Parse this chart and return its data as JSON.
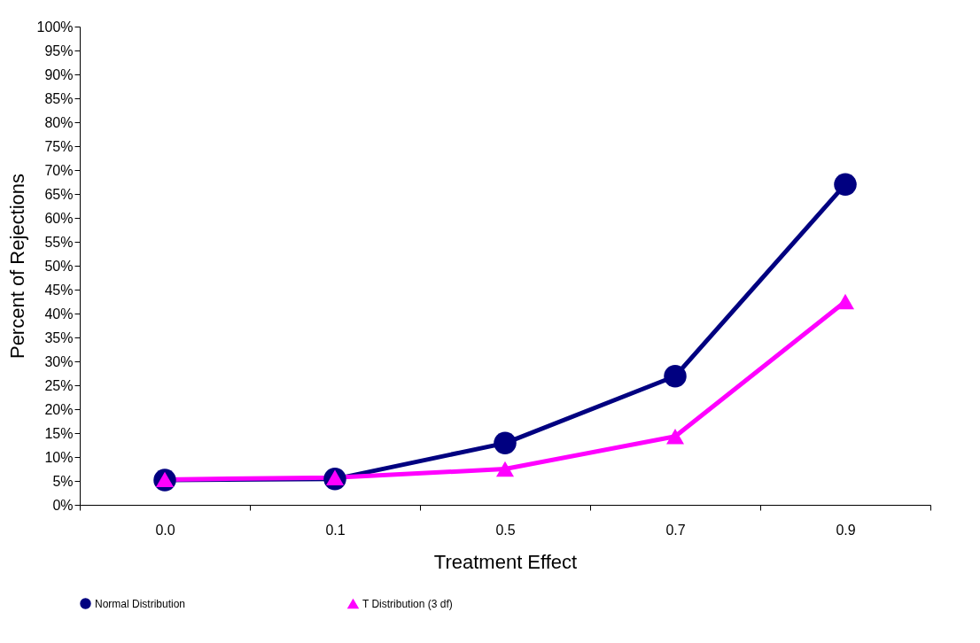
{
  "chart_data": {
    "type": "line",
    "xlabel": "Treatment Effect",
    "ylabel": "Percent of Rejections",
    "categories": [
      "0.0",
      "0.1",
      "0.5",
      "0.7",
      "0.9"
    ],
    "series": [
      {
        "name": "Normal Distribution",
        "color": "#000080",
        "marker": "circle",
        "values": [
          5.2,
          5.4,
          12.9,
          26.9,
          67.0
        ]
      },
      {
        "name": "T Distribution (3 df)",
        "color": "#ff00ff",
        "marker": "triangle",
        "values": [
          5.3,
          5.7,
          7.5,
          14.3,
          42.5
        ]
      }
    ],
    "ylim": [
      0,
      100
    ],
    "yticks": [
      {
        "value": 0,
        "label": "0%"
      },
      {
        "value": 5,
        "label": "5%"
      },
      {
        "value": 10,
        "label": "10%"
      },
      {
        "value": 15,
        "label": "15%"
      },
      {
        "value": 20,
        "label": "20%"
      },
      {
        "value": 25,
        "label": "25%"
      },
      {
        "value": 30,
        "label": "30%"
      },
      {
        "value": 35,
        "label": "35%"
      },
      {
        "value": 40,
        "label": "40%"
      },
      {
        "value": 45,
        "label": "45%"
      },
      {
        "value": 50,
        "label": "50%"
      },
      {
        "value": 55,
        "label": "55%"
      },
      {
        "value": 60,
        "label": "60%"
      },
      {
        "value": 65,
        "label": "65%"
      },
      {
        "value": 70,
        "label": "70%"
      },
      {
        "value": 75,
        "label": "75%"
      },
      {
        "value": 80,
        "label": "80%"
      },
      {
        "value": 85,
        "label": "85%"
      },
      {
        "value": 90,
        "label": "90%"
      },
      {
        "value": 95,
        "label": "95%"
      },
      {
        "value": 100,
        "label": "100%"
      }
    ],
    "grid": false,
    "legend": "bottom",
    "line_style": "solid"
  }
}
